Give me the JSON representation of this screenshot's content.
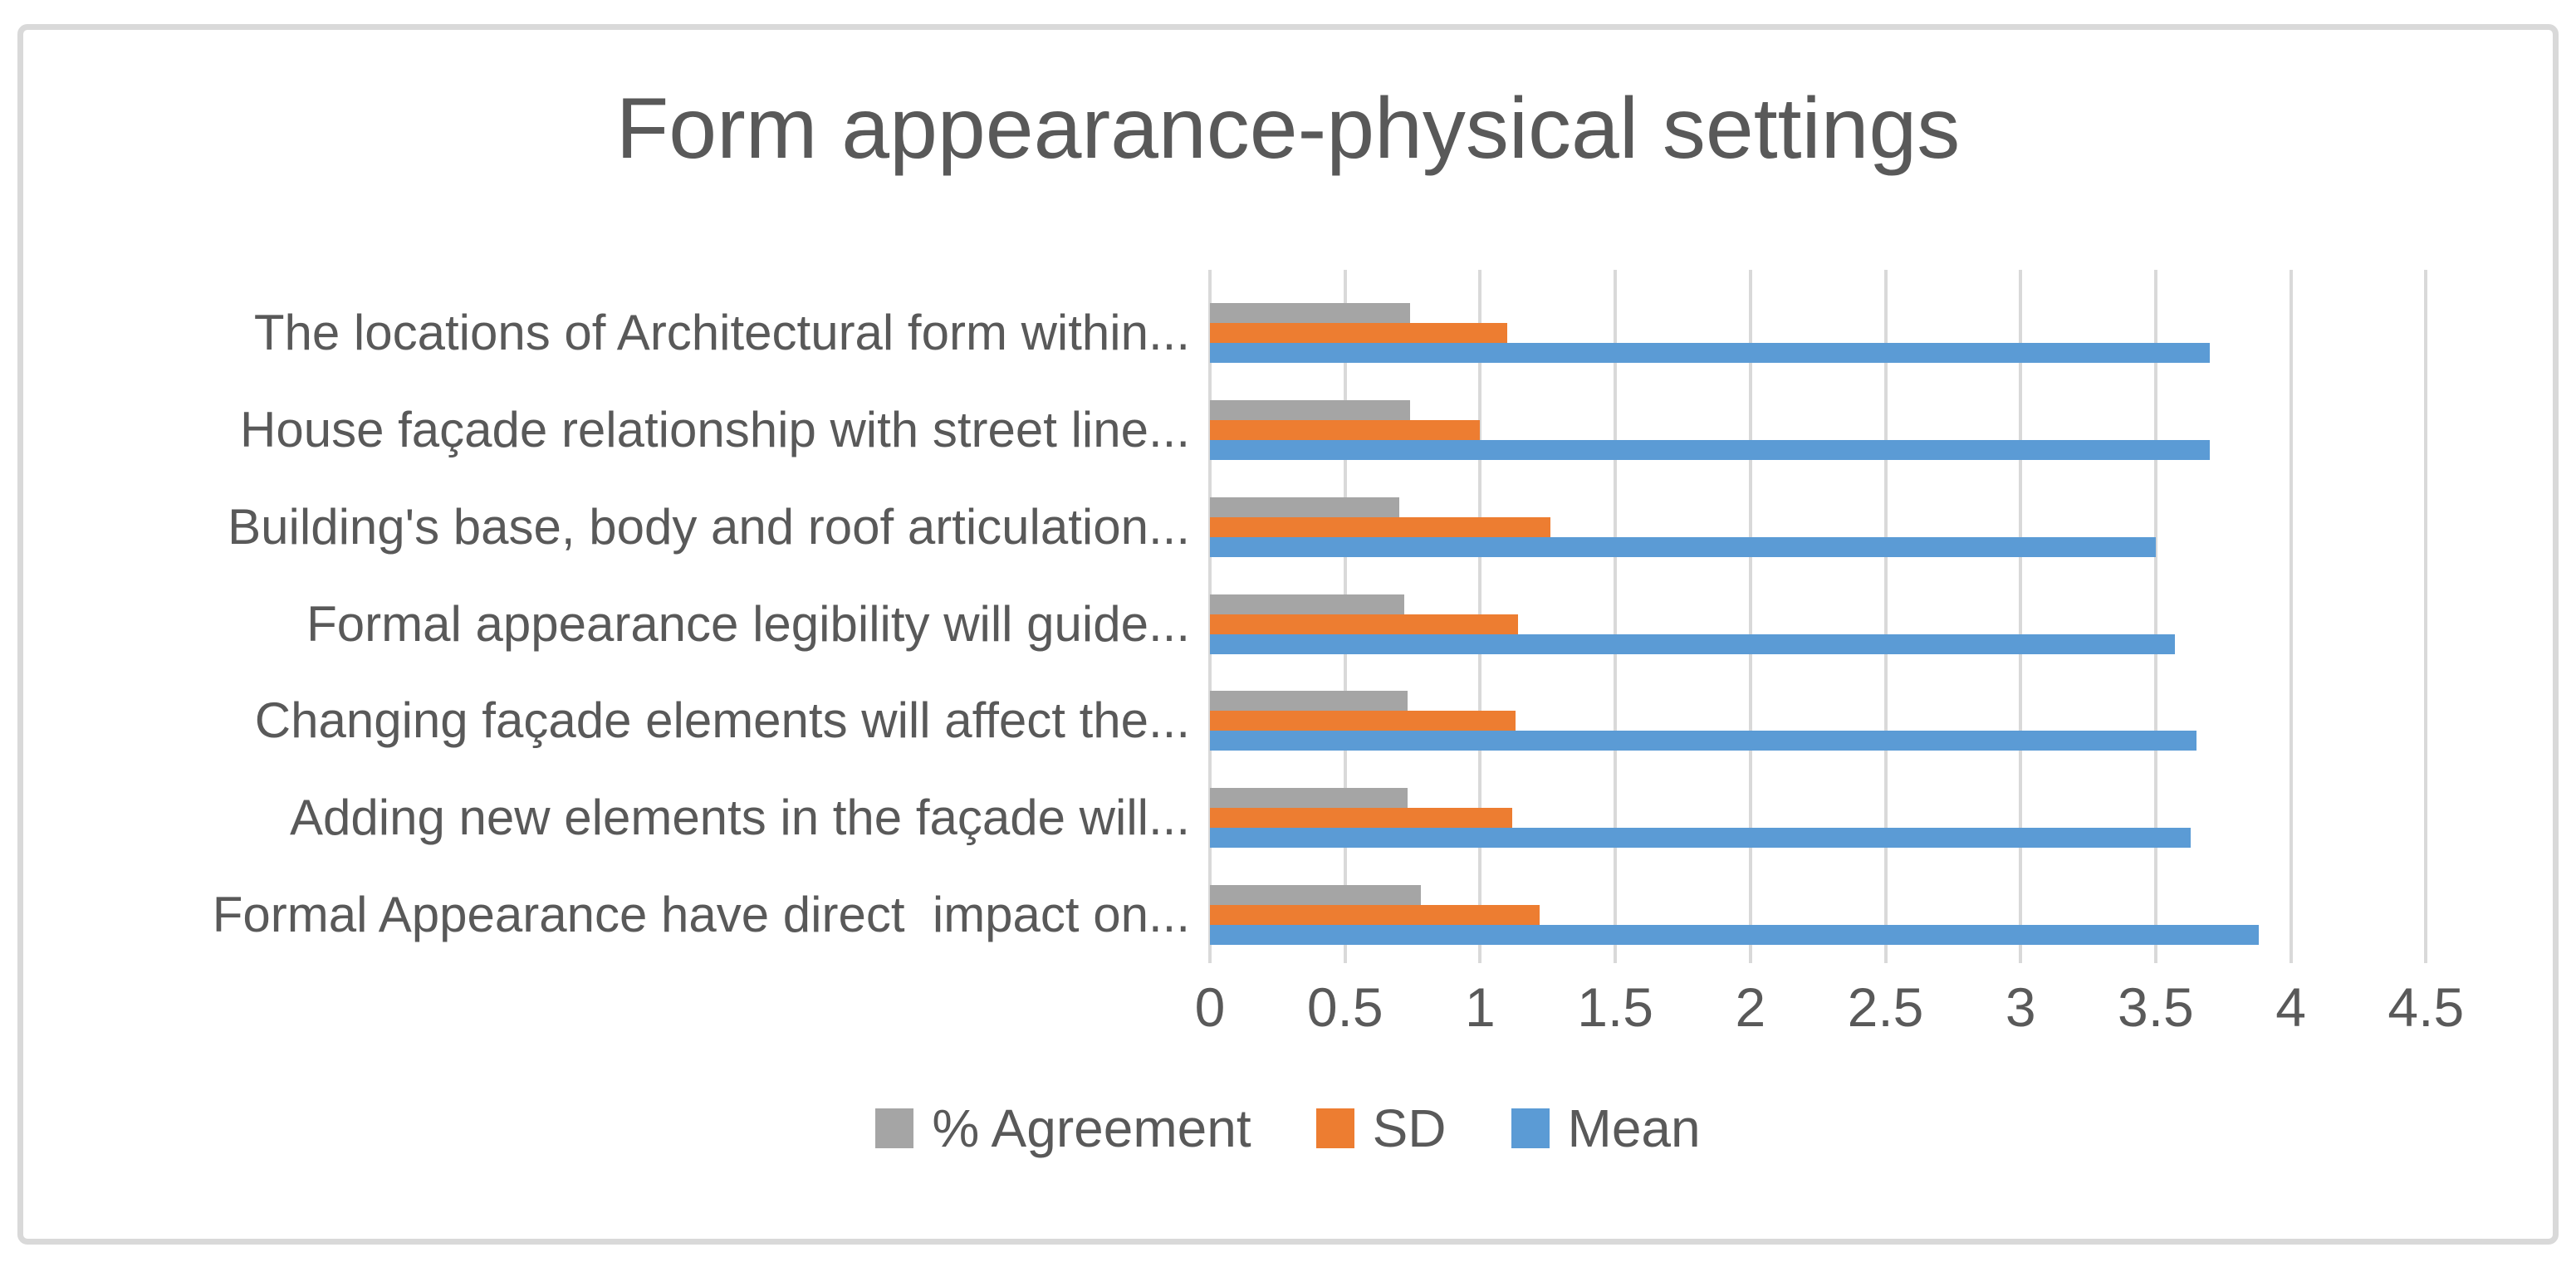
{
  "chart_data": {
    "type": "bar",
    "orientation": "horizontal",
    "title": "Form appearance-physical settings",
    "categories": [
      "The locations of Architectural form within...",
      "House façade relationship with street line...",
      "Building's base, body and roof articulation...",
      "Formal appearance legibility will guide...",
      "Changing façade elements will affect the...",
      "Adding new elements in the façade will...",
      "Formal Appearance have direct  impact on..."
    ],
    "series": [
      {
        "name": "% Agreement",
        "color": "#A5A5A5",
        "values": [
          0.74,
          0.74,
          0.7,
          0.72,
          0.73,
          0.73,
          0.78
        ]
      },
      {
        "name": "SD",
        "color": "#ED7D31",
        "values": [
          1.1,
          1.0,
          1.26,
          1.14,
          1.13,
          1.12,
          1.22
        ]
      },
      {
        "name": "Mean",
        "color": "#5B9BD5",
        "values": [
          3.7,
          3.7,
          3.5,
          3.57,
          3.65,
          3.63,
          3.88
        ]
      }
    ],
    "x_ticks": [
      "0",
      "0.5",
      "1",
      "1.5",
      "2",
      "2.5",
      "3",
      "3.5",
      "4",
      "4.5"
    ],
    "xlim": [
      0,
      4.5
    ],
    "xlabel": "",
    "ylabel": "",
    "grid": "vertical",
    "legend_position": "bottom",
    "colors": {
      "text": "#595959",
      "gridline": "#D9D9D9",
      "frame_border": "#D9D9D9",
      "background": "#ffffff"
    }
  }
}
